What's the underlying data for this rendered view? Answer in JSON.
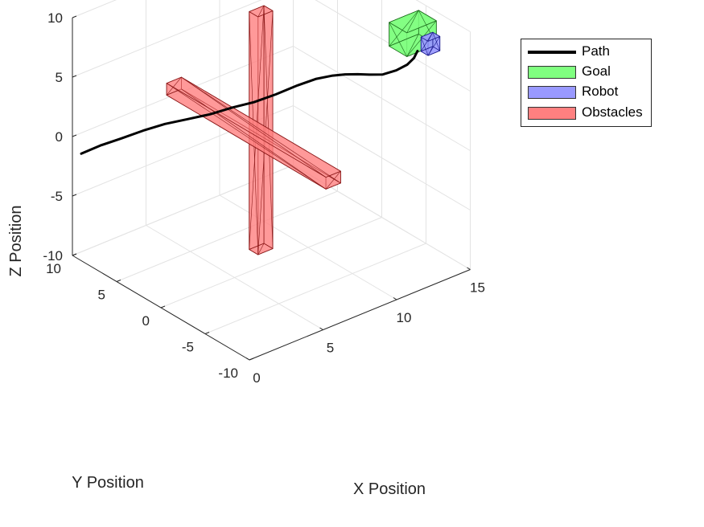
{
  "chart_data": {
    "type": "3d-line",
    "xlabel": "X Position",
    "ylabel": "Y Position",
    "zlabel": "Z Position",
    "xlim": [
      0,
      15
    ],
    "ylim": [
      -10,
      10
    ],
    "zlim": [
      -10,
      10
    ],
    "xticks": [
      "0",
      "5",
      "10",
      "15"
    ],
    "yticks": [
      "-10",
      "-5",
      "0",
      "5",
      "10"
    ],
    "zticks": [
      "-10",
      "-5",
      "0",
      "5",
      "10"
    ],
    "grid": true,
    "legend_position": "top-right",
    "legend": [
      {
        "label": "Path",
        "kind": "line",
        "color": "#000000"
      },
      {
        "label": "Goal",
        "kind": "patch",
        "color": "#80ff80"
      },
      {
        "label": "Robot",
        "kind": "patch",
        "color": "#9999ff"
      },
      {
        "label": "Obstacles",
        "kind": "patch",
        "color": "#ff8080"
      }
    ],
    "path": [
      [
        0.0,
        9.0,
        -1.0
      ],
      [
        1.0,
        8.5,
        -0.6
      ],
      [
        2.0,
        7.8,
        -0.2
      ],
      [
        3.0,
        7.0,
        0.3
      ],
      [
        4.0,
        6.2,
        0.7
      ],
      [
        5.0,
        5.3,
        1.0
      ],
      [
        6.0,
        4.4,
        1.3
      ],
      [
        7.0,
        3.6,
        1.7
      ],
      [
        8.0,
        2.8,
        2.0
      ],
      [
        9.0,
        2.0,
        2.5
      ],
      [
        10.0,
        1.2,
        3.1
      ],
      [
        10.8,
        0.4,
        3.6
      ],
      [
        11.3,
        -0.5,
        4.0
      ],
      [
        11.6,
        -1.5,
        4.4
      ],
      [
        11.8,
        -2.6,
        4.8
      ],
      [
        12.0,
        -3.6,
        5.1
      ],
      [
        12.3,
        -4.6,
        5.4
      ],
      [
        12.8,
        -5.3,
        5.8
      ],
      [
        13.3,
        -5.7,
        6.2
      ],
      [
        13.7,
        -5.8,
        6.6
      ],
      [
        14.0,
        -5.7,
        7.0
      ]
    ],
    "goal": {
      "center": [
        15,
        -3.5,
        7
      ],
      "size": [
        2,
        2,
        2
      ]
    },
    "robot": {
      "center": [
        15,
        -5.5,
        7
      ],
      "size": [
        0.8,
        0.8,
        1.2
      ]
    },
    "obstacles": [
      {
        "center": [
          8,
          2,
          0
        ],
        "size": [
          1,
          1,
          20
        ]
      },
      {
        "center": [
          7.5,
          2,
          0
        ],
        "size": [
          1,
          18,
          1
        ]
      }
    ]
  }
}
